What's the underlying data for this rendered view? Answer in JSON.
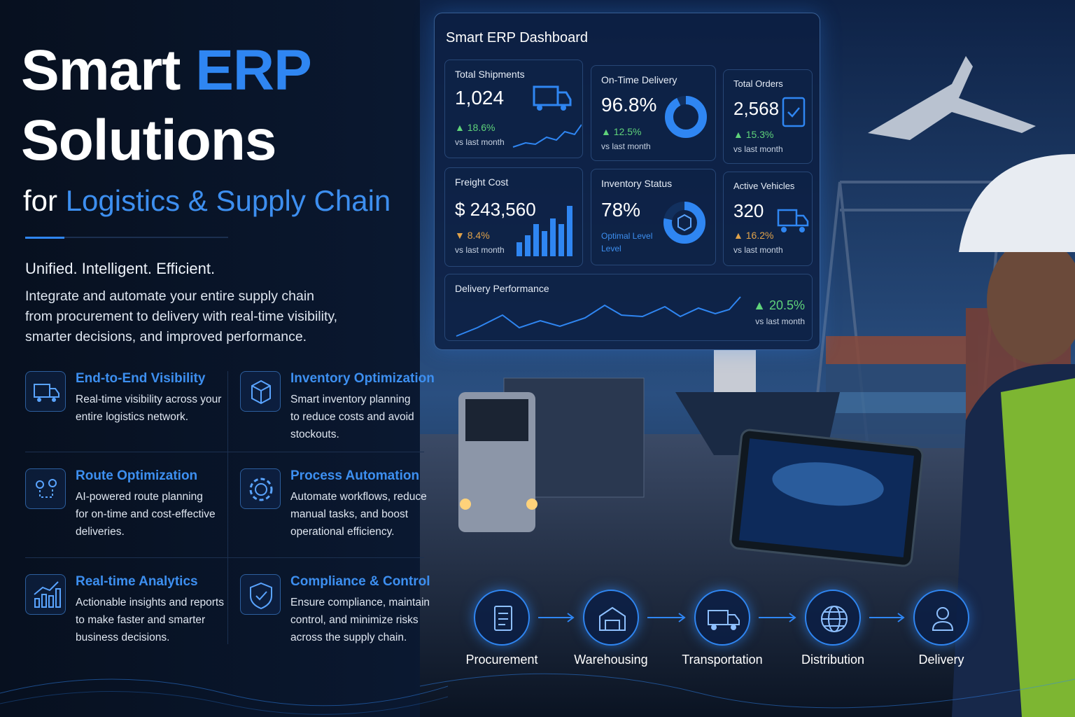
{
  "hero": {
    "title_word": "Smart",
    "title_highlight": "ERP",
    "title_line2": "Solutions",
    "subtitle_prefix": "for",
    "subtitle_highlight": "Logistics & Supply Chain",
    "tagline": "Unified. Intelligent. Efficient.",
    "description": [
      "Integrate and automate your entire supply chain",
      "from procurement to delivery with real-time visibility,",
      "smarter decisions, and improved performance."
    ]
  },
  "features": [
    {
      "title": "End-to-End Visibility",
      "lines": [
        "Real-time visibility across your",
        "entire logistics network."
      ]
    },
    {
      "title": "Inventory Optimization",
      "lines": [
        "Smart inventory planning",
        "to reduce costs and avoid",
        "stockouts."
      ]
    },
    {
      "title": "Route Optimization",
      "lines": [
        "AI-powered route planning",
        "for on-time and cost-effective",
        "deliveries."
      ]
    },
    {
      "title": "Process Automation",
      "lines": [
        "Automate workflows, reduce",
        "manual tasks, and boost",
        "operational efficiency."
      ]
    },
    {
      "title": "Real-time Analytics",
      "lines": [
        "Actionable insights and reports",
        "to make faster and smarter",
        "business decisions."
      ]
    },
    {
      "title": "Compliance & Control",
      "lines": [
        "Ensure compliance, maintain",
        "control, and minimize risks",
        "across the supply chain."
      ]
    }
  ],
  "dashboard": {
    "title": "Smart ERP Dashboard",
    "kpis": [
      {
        "label": "Total Shipments",
        "value": "1,024",
        "change": "18.6%",
        "note": "vs last month"
      },
      {
        "label": "On-Time Delivery",
        "value": "96.8%",
        "change": "12.5%",
        "note": "vs last month"
      },
      {
        "label": "Total Orders",
        "value": "2,568",
        "change": "15.3%",
        "note": "vs last month"
      },
      {
        "label": "Freight Cost",
        "value": "$ 243,560",
        "change": "8.4%",
        "note": "vs last month"
      },
      {
        "label": "Inventory Status",
        "value": "78%",
        "note_lines": [
          "Optimal Level",
          "Level"
        ]
      },
      {
        "label": "Active Vehicles",
        "value": "320",
        "change": "16.2%",
        "note": "vs last month"
      }
    ],
    "performance": {
      "label": "Delivery Performance",
      "change": "20.5%",
      "note": "vs last month"
    }
  },
  "process": {
    "steps": [
      "Procurement",
      "Warehousing",
      "Transportation",
      "Distribution",
      "Delivery"
    ]
  }
}
